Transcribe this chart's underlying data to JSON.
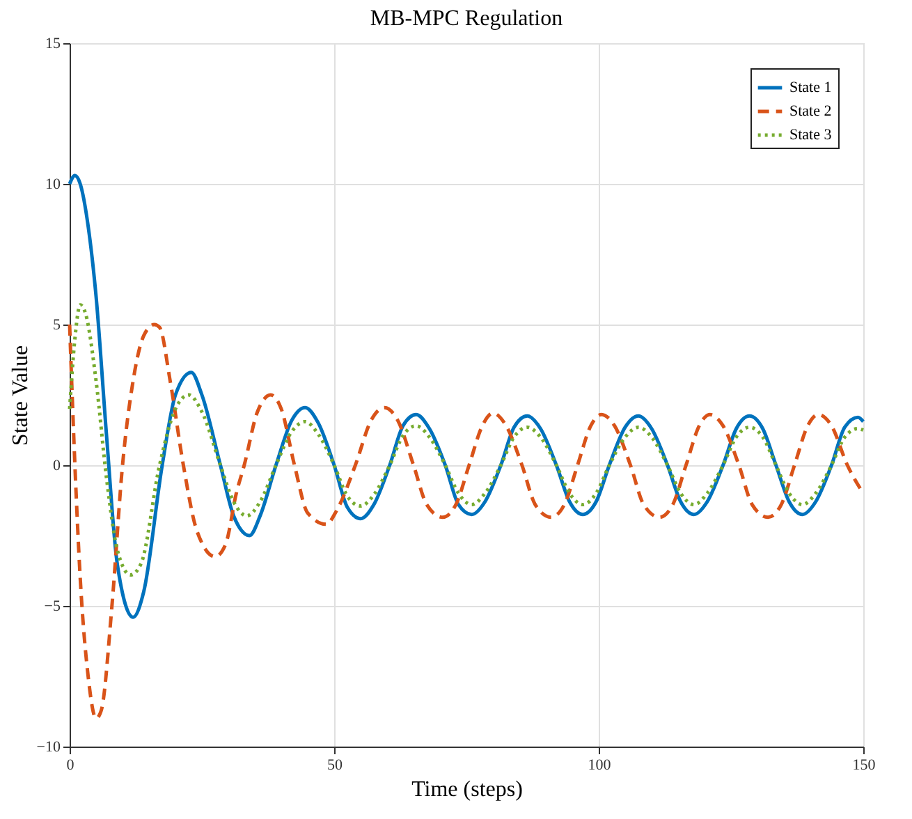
{
  "chart_data": {
    "type": "line",
    "title": "MB-MPC Regulation",
    "xlabel": "Time (steps)",
    "ylabel": "State Value",
    "xlim": [
      0,
      150
    ],
    "xticks": [
      0,
      50,
      100,
      150
    ],
    "ylim": [
      -10,
      15
    ],
    "yticks": [
      -10,
      -5,
      0,
      5,
      10,
      15
    ],
    "grid": true,
    "legend": "top right",
    "marker": "none",
    "series": [
      {
        "name": "State 1",
        "color": "#0072bd",
        "line_style": "solid",
        "x": [
          0,
          1,
          2,
          3.5,
          5,
          7,
          9,
          12,
          14,
          17.5,
          20,
          23,
          25,
          28.5,
          31,
          34,
          36,
          39,
          42,
          44.5,
          47,
          50,
          52.5,
          55,
          57.5,
          60.5,
          63,
          65.5,
          68,
          71,
          73.5,
          76,
          78.5,
          81.5,
          84,
          86.5,
          89,
          92,
          94.5,
          97,
          99.5,
          102,
          105,
          107.5,
          110,
          113,
          115.5,
          118,
          120.5,
          123.5,
          126,
          128.5,
          131,
          133.5,
          136,
          138.5,
          141,
          144,
          146.5,
          149,
          150
        ],
        "values": [
          10,
          10.3,
          10,
          8.5,
          6,
          1,
          -3.5,
          -5.4,
          -4.5,
          0,
          2.5,
          3.3,
          2.5,
          0,
          -1.8,
          -2.5,
          -1.8,
          0,
          1.6,
          2.05,
          1.5,
          0,
          -1.5,
          -1.9,
          -1.4,
          0,
          1.4,
          1.8,
          1.3,
          0,
          -1.4,
          -1.75,
          -1.3,
          0,
          1.35,
          1.75,
          1.3,
          0,
          -1.3,
          -1.75,
          -1.3,
          0,
          1.35,
          1.75,
          1.3,
          0,
          -1.3,
          -1.75,
          -1.3,
          0,
          1.3,
          1.75,
          1.3,
          0,
          -1.3,
          -1.75,
          -1.3,
          0,
          1.35,
          1.7,
          1.55
        ]
      },
      {
        "name": "State 2",
        "color": "#d95319",
        "line_style": "dashed",
        "x": [
          0,
          1,
          2,
          3.5,
          5,
          6,
          8,
          10,
          12,
          14,
          16,
          17,
          19,
          21.5,
          24,
          27.5,
          29.5,
          31.5,
          33,
          35.5,
          38,
          40,
          42.5,
          45,
          48.5,
          50.5,
          54,
          57,
          59.5,
          62,
          65,
          67.5,
          70.5,
          73,
          75.5,
          78,
          80,
          82.5,
          85.5,
          88,
          91,
          93.5,
          96,
          98.5,
          100.5,
          103,
          106,
          108.5,
          111.5,
          114,
          116.5,
          119,
          121,
          123.5,
          126.5,
          129,
          132,
          134.5,
          137,
          139.5,
          141.5,
          144,
          147,
          150
        ],
        "values": [
          5,
          0,
          -4,
          -7.5,
          -9,
          -8.7,
          -5,
          0,
          3,
          4.6,
          5,
          4.9,
          3,
          0,
          -2.3,
          -3.25,
          -2.8,
          -1,
          0,
          1.9,
          2.5,
          2,
          0,
          -1.7,
          -2.1,
          -1.6,
          0,
          1.6,
          2.05,
          1.6,
          0,
          -1.4,
          -1.85,
          -1.4,
          0,
          1.4,
          1.85,
          1.4,
          0,
          -1.4,
          -1.85,
          -1.4,
          0,
          1.4,
          1.8,
          1.4,
          0,
          -1.4,
          -1.85,
          -1.4,
          0,
          1.4,
          1.8,
          1.4,
          0,
          -1.4,
          -1.85,
          -1.4,
          0,
          1.4,
          1.8,
          1.4,
          0,
          -1
        ]
      },
      {
        "name": "State 3",
        "color": "#77ac30",
        "line_style": "dotted",
        "x": [
          0,
          1,
          2,
          3,
          5,
          7,
          9,
          11.5,
          13.5,
          17,
          20,
          22.5,
          25,
          28.5,
          31,
          33.5,
          36,
          39,
          42,
          44.5,
          47,
          50,
          52.5,
          55,
          57.5,
          60.5,
          63,
          65.5,
          68,
          71,
          73.5,
          76,
          78.5,
          81.5,
          84,
          86.5,
          89,
          92,
          94.5,
          97,
          99.5,
          102,
          105,
          107.5,
          110,
          113,
          115.5,
          118,
          120.5,
          123.5,
          126,
          128.5,
          131,
          133.5,
          136,
          138.5,
          141,
          144,
          146.5,
          149,
          150
        ],
        "values": [
          2,
          4.5,
          5.7,
          5.4,
          3,
          -0.5,
          -3,
          -3.9,
          -3.5,
          0,
          2,
          2.5,
          1.9,
          0,
          -1.3,
          -1.8,
          -1.3,
          0,
          1.2,
          1.55,
          1.1,
          0,
          -1.1,
          -1.45,
          -1.05,
          0,
          1.05,
          1.4,
          1,
          0,
          -1,
          -1.4,
          -1,
          0,
          1,
          1.35,
          1,
          0,
          -1,
          -1.4,
          -1,
          0,
          1,
          1.35,
          1,
          0,
          -1,
          -1.4,
          -1,
          0,
          1,
          1.35,
          1,
          0,
          -1,
          -1.4,
          -1,
          0,
          1,
          1.3,
          1.25
        ]
      }
    ]
  }
}
